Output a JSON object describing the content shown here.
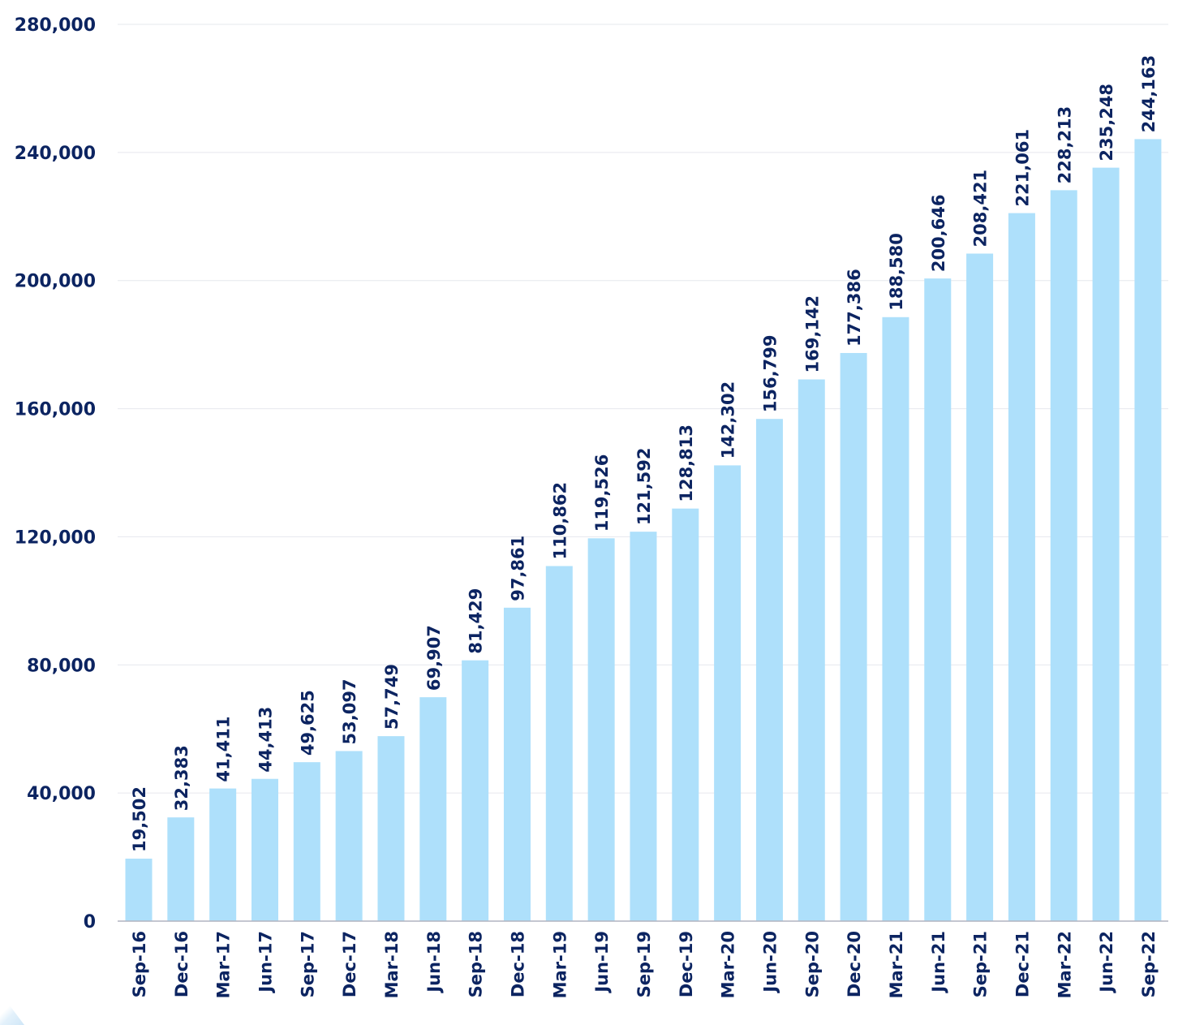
{
  "chart_data": {
    "type": "bar",
    "categories": [
      "Sep-16",
      "Dec-16",
      "Mar-17",
      "Jun-17",
      "Sep-17",
      "Dec-17",
      "Mar-18",
      "Jun-18",
      "Sep-18",
      "Dec-18",
      "Mar-19",
      "Jun-19",
      "Sep-19",
      "Dec-19",
      "Mar-20",
      "Jun-20",
      "Sep-20",
      "Dec-20",
      "Mar-21",
      "Jun-21",
      "Sep-21",
      "Dec-21",
      "Mar-22",
      "Jun-22",
      "Sep-22"
    ],
    "values": [
      19502,
      32383,
      41411,
      44413,
      49625,
      53097,
      57749,
      69907,
      81429,
      97861,
      110862,
      119526,
      121592,
      128813,
      142302,
      156799,
      169142,
      177386,
      188580,
      200646,
      208421,
      221061,
      228213,
      235248,
      244163
    ],
    "value_labels": [
      "19,502",
      "32,383",
      "41,411",
      "44,413",
      "49,625",
      "53,097",
      "57,749",
      "69,907",
      "81,429",
      "97,861",
      "110,862",
      "119,526",
      "121,592",
      "128,813",
      "142,302",
      "156,799",
      "169,142",
      "177,386",
      "188,580",
      "200,646",
      "208,421",
      "221,061",
      "228,213",
      "235,248",
      "244,163"
    ],
    "title": "",
    "xlabel": "",
    "ylabel": "",
    "ylim": [
      0,
      280000
    ],
    "y_ticks": [
      0,
      40000,
      80000,
      120000,
      160000,
      200000,
      240000,
      280000
    ],
    "y_tick_labels": [
      "0",
      "40,000",
      "80,000",
      "120,000",
      "160,000",
      "200,000",
      "240,000",
      "280,000"
    ],
    "grid": true,
    "legend": "none",
    "colors": {
      "bar": "#aee0fb",
      "text": "#0c2461",
      "grid": "#e6e8ee",
      "axis": "#b0b4c0"
    }
  }
}
